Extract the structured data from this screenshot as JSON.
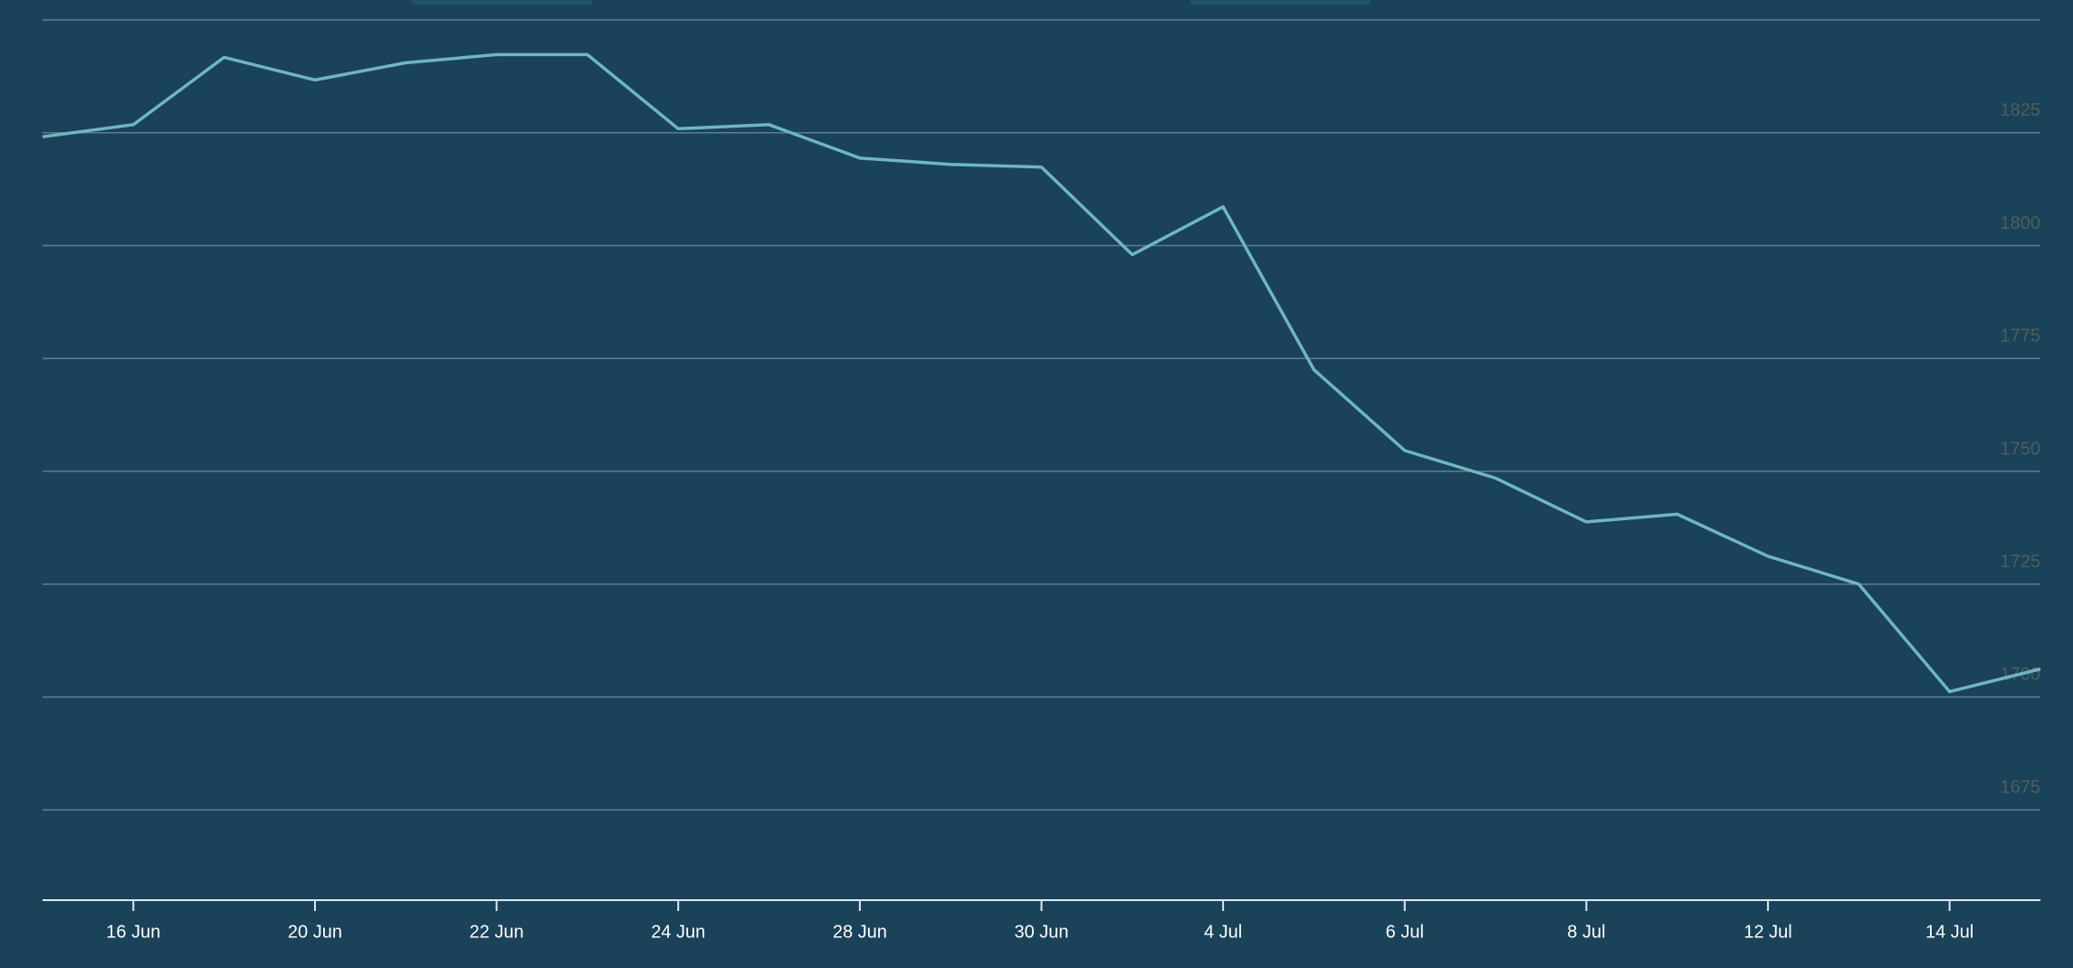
{
  "chart_data": {
    "type": "line",
    "categories": [
      null,
      "16 Jun",
      null,
      "20 Jun",
      null,
      "22 Jun",
      null,
      "24 Jun",
      null,
      "28 Jun",
      null,
      "30 Jun",
      null,
      "4 Jul",
      null,
      "6 Jul",
      null,
      "8 Jul",
      null,
      "12 Jul",
      null,
      "14 Jul",
      null
    ],
    "values": [
      1824.1,
      1826.8,
      1841.7,
      1836.7,
      1840.5,
      1842.3,
      1842.3,
      1825.9,
      1826.8,
      1819.4,
      1818.0,
      1817.4,
      1798.0,
      1808.6,
      1772.5,
      1754.6,
      1748.5,
      1738.8,
      1740.5,
      1731.2,
      1725.0,
      1701.2,
      1706.2
    ],
    "color": "#6fb6c0",
    "ylim": [
      1655,
      1850
    ],
    "yticks": [
      1675,
      1700,
      1725,
      1750,
      1775,
      1800,
      1825
    ],
    "grid": true
  }
}
